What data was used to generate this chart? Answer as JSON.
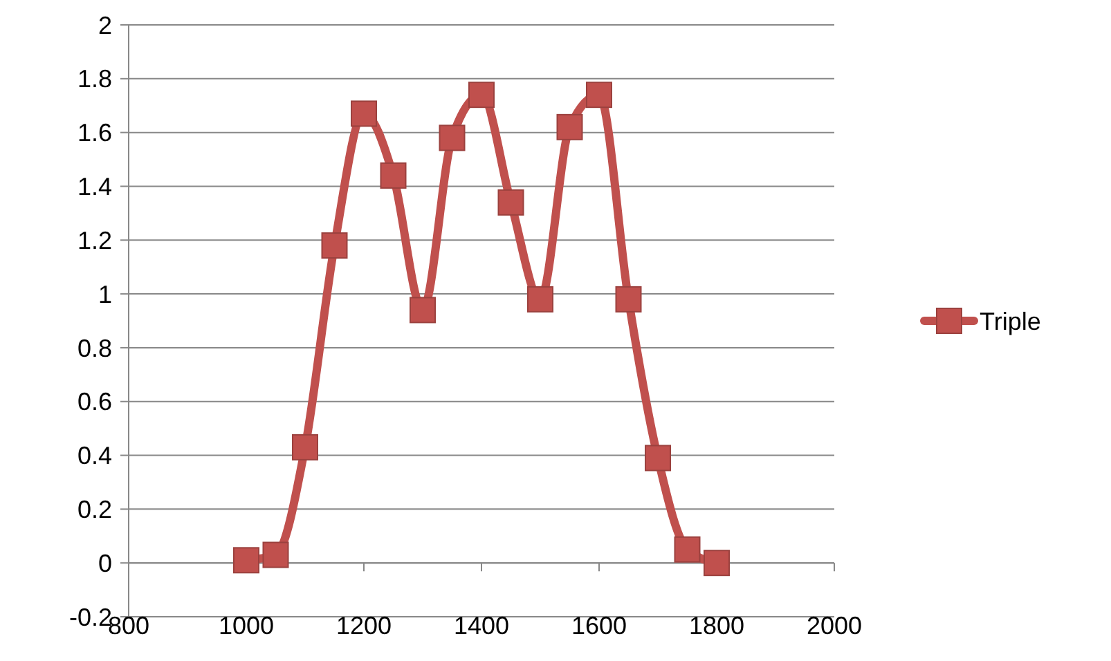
{
  "chart_data": {
    "type": "line",
    "x": [
      1000,
      1050,
      1100,
      1150,
      1200,
      1250,
      1300,
      1350,
      1400,
      1450,
      1500,
      1550,
      1600,
      1650,
      1700,
      1750,
      1800
    ],
    "series": [
      {
        "name": "Triple",
        "color": "#c0504d",
        "values": [
          0.01,
          0.03,
          0.43,
          1.18,
          1.67,
          1.44,
          0.94,
          1.58,
          1.74,
          1.34,
          0.98,
          1.62,
          1.74,
          0.98,
          0.39,
          0.05,
          0.0
        ]
      }
    ],
    "xlim": [
      800,
      2000
    ],
    "xticks": [
      800,
      1000,
      1200,
      1400,
      1600,
      1800,
      2000
    ],
    "ylim": [
      -0.2,
      2
    ],
    "yticks": [
      -0.2,
      0,
      0.2,
      0.4,
      0.6,
      0.8,
      1,
      1.2,
      1.4,
      1.6,
      1.8,
      2
    ],
    "grid": "y",
    "legend": "right",
    "marker": "square",
    "line_style": "solid"
  }
}
